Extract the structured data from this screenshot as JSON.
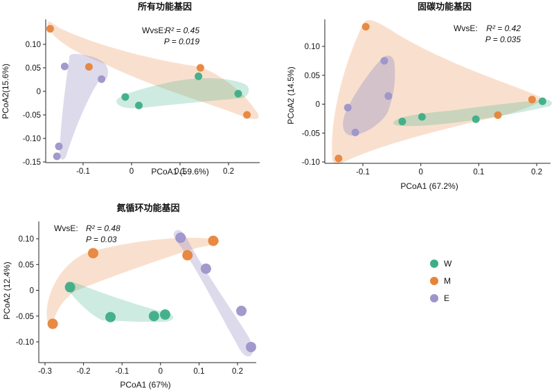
{
  "colors": {
    "W": "#3dae87",
    "M": "#e8843a",
    "E": "#9d95c9"
  },
  "legend": [
    {
      "key": "W",
      "label": "W"
    },
    {
      "key": "M",
      "label": "M"
    },
    {
      "key": "E",
      "label": "E"
    }
  ],
  "chart_data": [
    {
      "type": "scatter",
      "title": "所有功能基因",
      "xlabel": "PCoA1 (59.6%)",
      "ylabel": "PCoA2(15.6%)",
      "xticks": [
        {
          "v": -0.1,
          "label": "-0.1"
        },
        {
          "v": 0,
          "label": "0"
        },
        {
          "v": 0.1,
          "label": "0.1"
        },
        {
          "v": 0.2,
          "label": "0.2"
        }
      ],
      "yticks": [
        {
          "v": 0.1,
          "label": "0.10"
        },
        {
          "v": 0.05,
          "label": "0.05"
        },
        {
          "v": 0,
          "label": "0"
        },
        {
          "v": -0.05,
          "label": "-0.05"
        },
        {
          "v": -0.1,
          "label": "-0.10"
        },
        {
          "v": -0.15,
          "label": "-0.15"
        }
      ],
      "stats": {
        "comparison": "WvsE:",
        "r2_label": "R² = 0.45",
        "p_label": "P = 0.019"
      },
      "series": [
        {
          "key": "W",
          "points": [
            [
              -0.013,
              -0.012
            ],
            [
              0.015,
              -0.03
            ],
            [
              0.138,
              0.032
            ],
            [
              0.22,
              -0.005
            ]
          ]
        },
        {
          "key": "M",
          "points": [
            [
              -0.168,
              0.133
            ],
            [
              -0.088,
              0.052
            ],
            [
              0.142,
              0.05
            ],
            [
              0.238,
              -0.05
            ]
          ]
        },
        {
          "key": "E",
          "points": [
            [
              -0.138,
              0.053
            ],
            [
              -0.062,
              0.026
            ],
            [
              -0.15,
              -0.117
            ],
            [
              -0.154,
              -0.138
            ]
          ]
        }
      ]
    },
    {
      "type": "scatter",
      "title": "固碳功能基因",
      "xlabel": "PCoA1 (67.2%)",
      "ylabel": "PCoA2 (14.5%)",
      "xticks": [
        {
          "v": -0.1,
          "label": "-0.1"
        },
        {
          "v": 0,
          "label": "0"
        },
        {
          "v": 0.1,
          "label": "0.1"
        },
        {
          "v": 0.2,
          "label": "0.2"
        }
      ],
      "yticks": [
        {
          "v": 0.1,
          "label": "0.10"
        },
        {
          "v": 0.05,
          "label": "0.05"
        },
        {
          "v": 0,
          "label": "0"
        },
        {
          "v": -0.05,
          "label": "-0.05"
        },
        {
          "v": -0.1,
          "label": "-0.10"
        }
      ],
      "stats": {
        "comparison": "WvsE:",
        "r2_label": "R² = 0.42",
        "p_label": "P = 0.035"
      },
      "series": [
        {
          "key": "W",
          "points": [
            [
              -0.032,
              -0.03
            ],
            [
              0.002,
              -0.022
            ],
            [
              0.095,
              -0.026
            ],
            [
              0.21,
              0.005
            ]
          ]
        },
        {
          "key": "M",
          "points": [
            [
              -0.142,
              -0.094
            ],
            [
              -0.095,
              0.134
            ],
            [
              0.133,
              -0.019
            ],
            [
              0.192,
              0.008
            ]
          ]
        },
        {
          "key": "E",
          "points": [
            [
              -0.063,
              0.075
            ],
            [
              -0.056,
              0.014
            ],
            [
              -0.126,
              -0.006
            ],
            [
              -0.113,
              -0.049
            ]
          ]
        }
      ]
    },
    {
      "type": "scatter",
      "title": "氮循环功能基因",
      "xlabel": "PCoA1 (67%)",
      "ylabel": "PCoA2 (12.4%)",
      "xticks": [
        {
          "v": -0.3,
          "label": "-0.3"
        },
        {
          "v": -0.2,
          "label": "-0.2"
        },
        {
          "v": -0.1,
          "label": "-0.1"
        },
        {
          "v": 0,
          "label": "0"
        },
        {
          "v": 0.1,
          "label": "0.1"
        },
        {
          "v": 0.2,
          "label": "0.2"
        }
      ],
      "yticks": [
        {
          "v": 0.1,
          "label": "0.10"
        },
        {
          "v": 0.05,
          "label": "0.05"
        },
        {
          "v": 0,
          "label": "0"
        },
        {
          "v": -0.05,
          "label": "-0.05"
        },
        {
          "v": -0.1,
          "label": "-0.10"
        }
      ],
      "stats": {
        "comparison": "WvsE:",
        "r2_label": "R² = 0.48",
        "p_label": "P =  0.03"
      },
      "series": [
        {
          "key": "W",
          "points": [
            [
              -0.235,
              0.006
            ],
            [
              -0.13,
              -0.052
            ],
            [
              -0.017,
              -0.05
            ],
            [
              0.012,
              -0.047
            ]
          ]
        },
        {
          "key": "M",
          "points": [
            [
              -0.28,
              -0.065
            ],
            [
              -0.175,
              0.072
            ],
            [
              0.07,
              0.068
            ],
            [
              0.137,
              0.096
            ]
          ]
        },
        {
          "key": "E",
          "points": [
            [
              0.052,
              0.102
            ],
            [
              0.118,
              0.042
            ],
            [
              0.21,
              -0.04
            ],
            [
              0.235,
              -0.11
            ]
          ]
        }
      ]
    }
  ]
}
